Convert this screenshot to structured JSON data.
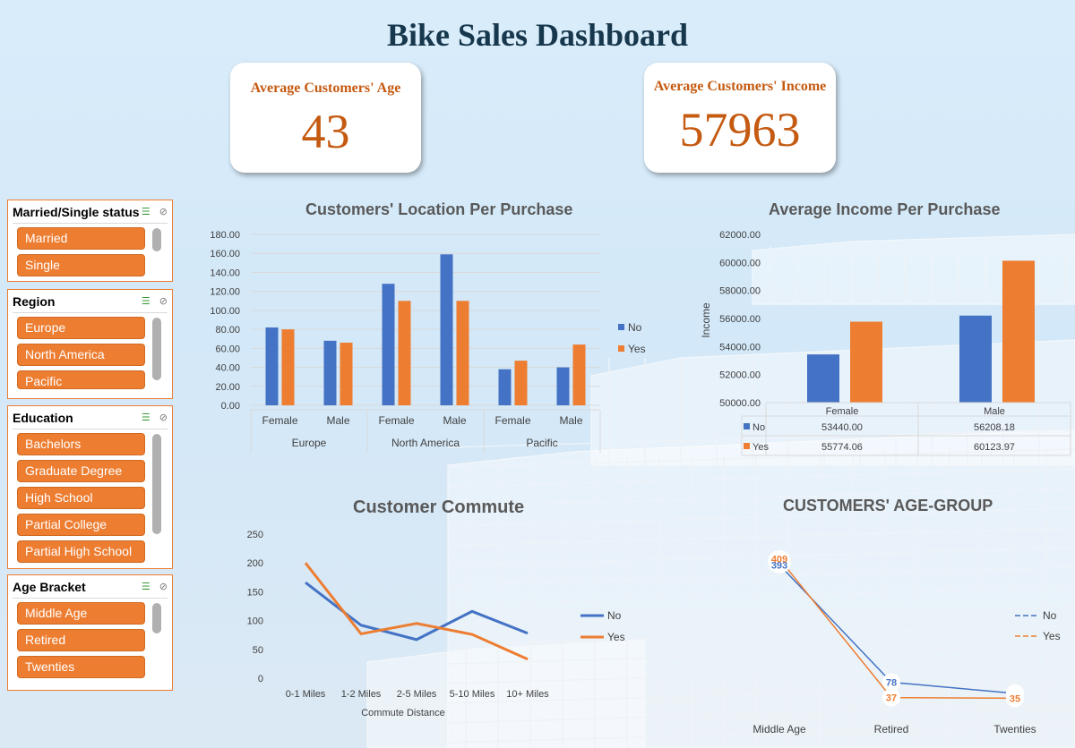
{
  "title": "Bike Sales Dashboard",
  "kpis": {
    "age": {
      "label": "Average Customers' Age",
      "value": "43"
    },
    "income": {
      "label": "Average Customers' Income",
      "value": "57963"
    }
  },
  "slicers": [
    {
      "title": "Married/Single status",
      "items": [
        "Married",
        "Single"
      ]
    },
    {
      "title": "Region",
      "items": [
        "Europe",
        "North America",
        "Pacific"
      ]
    },
    {
      "title": "Education",
      "items": [
        "Bachelors",
        "Graduate Degree",
        "High School",
        "Partial College",
        "Partial High School"
      ]
    },
    {
      "title": "Age Bracket",
      "items": [
        "Middle Age",
        "Retired",
        "Twenties"
      ]
    }
  ],
  "colors": {
    "no": "#4472c4",
    "yes": "#ed7d31",
    "title": "#17374d",
    "kpi": "#c55a11"
  },
  "chart_data": [
    {
      "id": "location",
      "type": "bar",
      "title": "Customers' Location Per Purchase",
      "groups": [
        "Europe",
        "North America",
        "Pacific"
      ],
      "categories": [
        "Female",
        "Male",
        "Female",
        "Male",
        "Female",
        "Male"
      ],
      "series": [
        {
          "name": "No",
          "values": [
            82,
            68,
            128,
            159,
            38,
            40
          ]
        },
        {
          "name": "Yes",
          "values": [
            80,
            66,
            110,
            110,
            47,
            64
          ]
        }
      ],
      "yticks": [
        "0.00",
        "20.00",
        "40.00",
        "60.00",
        "80.00",
        "100.00",
        "120.00",
        "140.00",
        "160.00",
        "180.00"
      ],
      "ylim": [
        0,
        180
      ],
      "legend": "right"
    },
    {
      "id": "income",
      "type": "bar",
      "title": "Average Income Per Purchase",
      "categories": [
        "Female",
        "Male"
      ],
      "series": [
        {
          "name": "No",
          "values": [
            53440,
            56208.18
          ],
          "labels": [
            "53440.00",
            "56208.18"
          ]
        },
        {
          "name": "Yes",
          "values": [
            55774.06,
            60123.97
          ],
          "labels": [
            "55774.06",
            "60123.97"
          ]
        }
      ],
      "ylabel": "Income",
      "yticks": [
        "50000.00",
        "52000.00",
        "54000.00",
        "56000.00",
        "58000.00",
        "60000.00",
        "62000.00"
      ],
      "ylim": [
        50000,
        62000
      ],
      "legend": "data-table"
    },
    {
      "id": "commute",
      "type": "line",
      "title": "Customer Commute",
      "categories": [
        "0-1 Miles",
        "1-2 Miles",
        "2-5 Miles",
        "5-10 Miles",
        "10+ Miles"
      ],
      "series": [
        {
          "name": "No",
          "values": [
            166,
            92,
            67,
            116,
            78
          ]
        },
        {
          "name": "Yes",
          "values": [
            200,
            77,
            95,
            76,
            33
          ]
        }
      ],
      "xlabel": "Commute Distance",
      "yticks": [
        "0",
        "50",
        "100",
        "150",
        "200",
        "250"
      ],
      "ylim": [
        0,
        250
      ],
      "legend": "right"
    },
    {
      "id": "agegroup",
      "type": "line",
      "title": "CUSTOMERS' AGE-GROUP",
      "categories": [
        "Middle Age",
        "Retired",
        "Twenties"
      ],
      "series": [
        {
          "name": "No",
          "values": [
            393,
            78,
            48
          ],
          "labels": [
            "393",
            "78",
            "48"
          ]
        },
        {
          "name": "Yes",
          "values": [
            409,
            37,
            35
          ],
          "labels": [
            "409",
            "37",
            "35"
          ]
        }
      ],
      "ylim": [
        0,
        420
      ],
      "legend": "right"
    }
  ]
}
